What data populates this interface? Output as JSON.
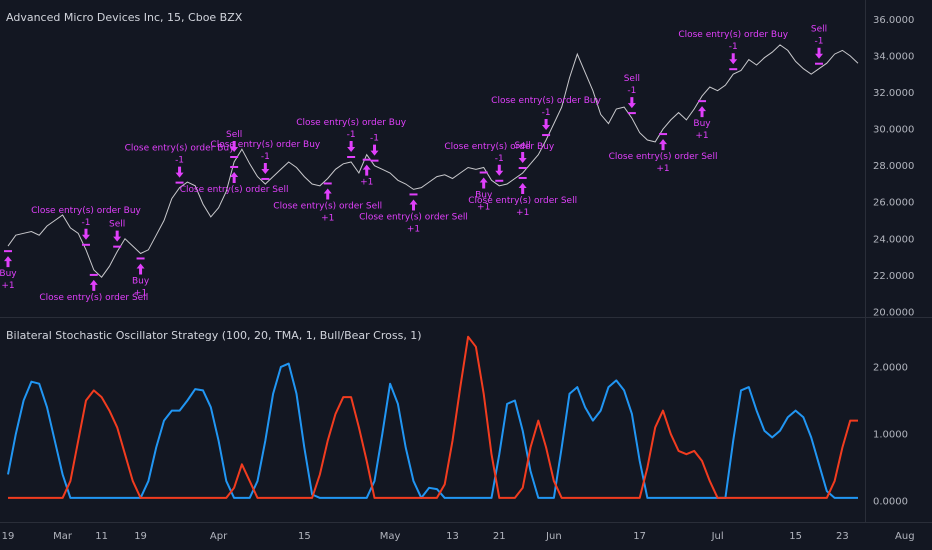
{
  "header": {
    "main_title": "Advanced Micro Devices Inc, 15, Cboe BZX",
    "indicator_title": "Bilateral Stochastic Oscillator Strategy (100, 20, TMA, 1, Bull/Bear Cross, 1)"
  },
  "colors": {
    "background": "#131722",
    "price_line": "#c8c8cc",
    "signal": "#e040fb",
    "bull": "#f23c1f",
    "bear": "#2196f3",
    "divider": "#2a2e39"
  },
  "x_axis": {
    "labels": [
      {
        "text": "19",
        "i": 0
      },
      {
        "text": "Mar",
        "i": 7
      },
      {
        "text": "11",
        "i": 12
      },
      {
        "text": "19",
        "i": 17
      },
      {
        "text": "Apr",
        "i": 27
      },
      {
        "text": "15",
        "i": 38
      },
      {
        "text": "May",
        "i": 49
      },
      {
        "text": "13",
        "i": 57
      },
      {
        "text": "21",
        "i": 63
      },
      {
        "text": "Jun",
        "i": 70
      },
      {
        "text": "17",
        "i": 81
      },
      {
        "text": "Jul",
        "i": 91
      },
      {
        "text": "15",
        "i": 101
      },
      {
        "text": "23",
        "i": 107
      },
      {
        "text": "Aug",
        "i": 115
      }
    ]
  },
  "chart_data": [
    {
      "type": "line",
      "title": "Advanced Micro Devices Inc, 15, Cboe BZX",
      "y_ticks": [
        "20.0000",
        "22.0000",
        "24.0000",
        "26.0000",
        "28.0000",
        "30.0000",
        "32.0000",
        "34.0000",
        "36.0000"
      ],
      "ylim": [
        20,
        36.4
      ],
      "series": [
        {
          "values": [
            23.6,
            24.2,
            24.3,
            24.4,
            24.2,
            24.7,
            25.0,
            25.3,
            24.6,
            24.3,
            23.4,
            22.3,
            21.9,
            22.5,
            23.3,
            24.0,
            23.6,
            23.2,
            23.4,
            24.2,
            25.0,
            26.2,
            26.8,
            27.1,
            26.9,
            25.9,
            25.2,
            25.7,
            26.6,
            28.2,
            28.9,
            28.1,
            27.4,
            27.0,
            27.4,
            27.8,
            28.2,
            27.9,
            27.4,
            27.0,
            26.9,
            27.3,
            27.8,
            28.1,
            28.2,
            27.6,
            28.6,
            28.0,
            27.8,
            27.6,
            27.2,
            27.0,
            26.7,
            26.8,
            27.1,
            27.4,
            27.5,
            27.3,
            27.6,
            27.9,
            27.8,
            27.9,
            27.2,
            26.9,
            27.0,
            27.3,
            27.6,
            28.1,
            28.6,
            29.4,
            30.3,
            31.2,
            32.8,
            34.1,
            33.1,
            32.1,
            30.8,
            30.3,
            31.1,
            31.2,
            30.6,
            29.8,
            29.4,
            29.3,
            30.0,
            30.5,
            30.9,
            30.5,
            31.1,
            31.8,
            32.3,
            32.1,
            32.4,
            33.0,
            33.2,
            33.8,
            33.5,
            33.9,
            34.2,
            34.6,
            34.3,
            33.7,
            33.3,
            33.0,
            33.3,
            33.6,
            34.1,
            34.3,
            34.0,
            33.6
          ]
        }
      ],
      "signals": [
        {
          "i": 0,
          "side": "buy",
          "labels": [
            "Buy",
            "+1"
          ]
        },
        {
          "i": 10,
          "side": "sell",
          "labels": [
            "Close entry(s) order Buy",
            "-1"
          ]
        },
        {
          "i": 14,
          "side": "sell",
          "labels": [
            "Sell"
          ]
        },
        {
          "i": 11,
          "side": "buy",
          "labels": [
            "Close entry(s) order Sell"
          ]
        },
        {
          "i": 17,
          "side": "buy",
          "labels": [
            "Buy",
            "+1"
          ]
        },
        {
          "i": 22,
          "side": "sell",
          "labels": [
            "Close entry(s) order Buy",
            "-1"
          ]
        },
        {
          "i": 29,
          "side": "sell",
          "labels": [
            "Sell"
          ]
        },
        {
          "i": 33,
          "side": "sell",
          "labels": [
            "Close entry(s) order Buy",
            "-1"
          ]
        },
        {
          "i": 29,
          "side": "buy",
          "labels": [
            "Close entry(s) order Sell"
          ]
        },
        {
          "i": 41,
          "side": "buy",
          "labels": [
            "Close entry(s) order Sell",
            "+1"
          ]
        },
        {
          "i": 44,
          "side": "sell",
          "labels": [
            "Close entry(s) order Buy",
            "-1"
          ]
        },
        {
          "i": 47,
          "side": "sell",
          "labels": [
            "-1"
          ]
        },
        {
          "i": 46,
          "side": "buy",
          "labels": [
            "+1"
          ]
        },
        {
          "i": 52,
          "side": "buy",
          "labels": [
            "Close entry(s) order Sell",
            "+1"
          ]
        },
        {
          "i": 61,
          "side": "buy",
          "labels": [
            "Buy",
            "+1"
          ]
        },
        {
          "i": 63,
          "side": "sell",
          "labels": [
            "Close entry(s) order Buy",
            "-1"
          ]
        },
        {
          "i": 66,
          "side": "sell",
          "labels": [
            "Sell"
          ]
        },
        {
          "i": 66,
          "side": "buy",
          "labels": [
            "Close entry(s) order Sell",
            "+1"
          ]
        },
        {
          "i": 69,
          "side": "sell",
          "labels": [
            "Close entry(s) order Buy",
            "-1"
          ]
        },
        {
          "i": 80,
          "side": "sell",
          "labels": [
            "Sell",
            "-1"
          ]
        },
        {
          "i": 84,
          "side": "buy",
          "labels": [
            "Close entry(s) order Sell",
            "+1"
          ]
        },
        {
          "i": 89,
          "side": "buy",
          "labels": [
            "Buy",
            "+1"
          ]
        },
        {
          "i": 93,
          "side": "sell",
          "labels": [
            "Close entry(s) order Buy",
            "-1"
          ]
        },
        {
          "i": 104,
          "side": "sell",
          "labels": [
            "Sell",
            "-1"
          ]
        }
      ]
    },
    {
      "type": "line",
      "title": "Bilateral Stochastic Oscillator Strategy (100, 20, TMA, 1, Bull/Bear Cross, 1)",
      "y_ticks": [
        "0.0000",
        "1.0000",
        "2.0000"
      ],
      "ylim": [
        -0.25,
        2.55
      ],
      "series": [
        {
          "color": "#2196f3",
          "values": [
            0.4,
            1.0,
            1.5,
            1.78,
            1.75,
            1.4,
            0.9,
            0.4,
            0.05,
            0.05,
            0.05,
            0.05,
            0.05,
            0.05,
            0.05,
            0.05,
            0.05,
            0.05,
            0.3,
            0.8,
            1.2,
            1.35,
            1.35,
            1.5,
            1.67,
            1.65,
            1.4,
            0.9,
            0.3,
            0.05,
            0.05,
            0.05,
            0.3,
            0.9,
            1.6,
            2.0,
            2.05,
            1.6,
            0.8,
            0.1,
            0.05,
            0.05,
            0.05,
            0.05,
            0.05,
            0.05,
            0.05,
            0.3,
            1.0,
            1.75,
            1.45,
            0.8,
            0.3,
            0.05,
            0.2,
            0.18,
            0.05,
            0.05,
            0.05,
            0.05,
            0.05,
            0.05,
            0.05,
            0.7,
            1.45,
            1.5,
            1.05,
            0.45,
            0.05,
            0.05,
            0.05,
            0.8,
            1.6,
            1.7,
            1.4,
            1.2,
            1.35,
            1.7,
            1.8,
            1.65,
            1.3,
            0.6,
            0.05,
            0.05,
            0.05,
            0.05,
            0.05,
            0.05,
            0.05,
            0.05,
            0.05,
            0.05,
            0.05,
            0.9,
            1.65,
            1.7,
            1.35,
            1.05,
            0.95,
            1.05,
            1.25,
            1.35,
            1.25,
            0.95,
            0.55,
            0.15,
            0.05,
            0.05,
            0.05,
            0.05
          ]
        },
        {
          "color": "#f23c1f",
          "values": [
            0.05,
            0.05,
            0.05,
            0.05,
            0.05,
            0.05,
            0.05,
            0.05,
            0.3,
            0.9,
            1.5,
            1.65,
            1.55,
            1.35,
            1.1,
            0.7,
            0.3,
            0.05,
            0.05,
            0.05,
            0.05,
            0.05,
            0.05,
            0.05,
            0.05,
            0.05,
            0.05,
            0.05,
            0.05,
            0.2,
            0.55,
            0.3,
            0.05,
            0.05,
            0.05,
            0.05,
            0.05,
            0.05,
            0.05,
            0.05,
            0.4,
            0.9,
            1.3,
            1.55,
            1.55,
            1.1,
            0.6,
            0.05,
            0.05,
            0.05,
            0.05,
            0.05,
            0.05,
            0.05,
            0.05,
            0.05,
            0.25,
            0.9,
            1.7,
            2.45,
            2.3,
            1.6,
            0.7,
            0.05,
            0.05,
            0.05,
            0.2,
            0.8,
            1.2,
            0.8,
            0.3,
            0.05,
            0.05,
            0.05,
            0.05,
            0.05,
            0.05,
            0.05,
            0.05,
            0.05,
            0.05,
            0.05,
            0.5,
            1.1,
            1.35,
            1.0,
            0.75,
            0.7,
            0.75,
            0.6,
            0.3,
            0.05,
            0.05,
            0.05,
            0.05,
            0.05,
            0.05,
            0.05,
            0.05,
            0.05,
            0.05,
            0.05,
            0.05,
            0.05,
            0.05,
            0.05,
            0.3,
            0.8,
            1.2,
            1.2
          ]
        }
      ]
    }
  ]
}
